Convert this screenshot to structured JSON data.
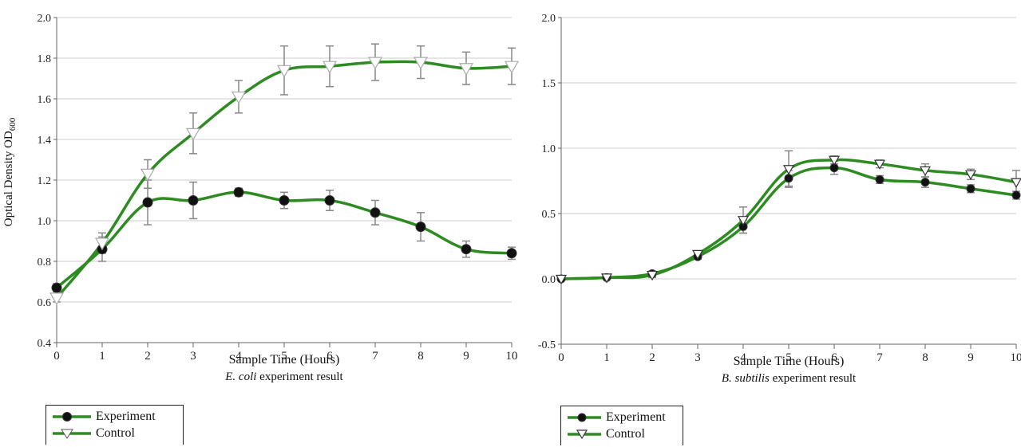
{
  "chart_data": [
    {
      "type": "line",
      "xlabel": "Sample Time (Hours)",
      "ylabel_main": "Optical Density OD",
      "ylabel_sub": "600",
      "caption_italic": "E. coli",
      "caption_rest": " experiment result",
      "xlim": [
        0,
        10
      ],
      "ylim": [
        0.4,
        2.0
      ],
      "x_ticks": [
        "0",
        "1",
        "2",
        "3",
        "4",
        "5",
        "6",
        "7",
        "8",
        "9",
        "10"
      ],
      "y_ticks": [
        "0.4",
        "0.6",
        "0.8",
        "1.0",
        "1.2",
        "1.4",
        "1.6",
        "1.8",
        "2.0"
      ],
      "grid": true,
      "legend_position": "bottom-left",
      "x": [
        0,
        1,
        2,
        3,
        4,
        5,
        6,
        7,
        8,
        9,
        10
      ],
      "series": [
        {
          "name": "Experiment",
          "marker": "filled-circle",
          "values": [
            0.67,
            0.86,
            1.09,
            1.1,
            1.14,
            1.1,
            1.1,
            1.04,
            0.97,
            0.86,
            0.84
          ],
          "errors": [
            0.02,
            0.06,
            0.11,
            0.09,
            0.02,
            0.04,
            0.05,
            0.06,
            0.07,
            0.04,
            0.03
          ]
        },
        {
          "name": "Control",
          "marker": "open-triangle-down",
          "values": [
            0.62,
            0.89,
            1.23,
            1.43,
            1.61,
            1.74,
            1.76,
            1.78,
            1.78,
            1.75,
            1.76
          ],
          "errors": [
            0.02,
            0.05,
            0.07,
            0.1,
            0.08,
            0.12,
            0.1,
            0.09,
            0.08,
            0.08,
            0.09
          ]
        }
      ]
    },
    {
      "type": "line",
      "xlabel": "Sample Time (Hours)",
      "caption_italic": "B. subtilis",
      "caption_rest": " experiment result",
      "xlim": [
        0,
        10
      ],
      "ylim": [
        -0.5,
        2.0
      ],
      "x_ticks": [
        "0",
        "1",
        "2",
        "3",
        "4",
        "5",
        "6",
        "7",
        "8",
        "9",
        "10"
      ],
      "y_ticks": [
        "-0.5",
        "0.0",
        "0.5",
        "1.0",
        "1.5",
        "2.0"
      ],
      "grid": true,
      "legend_position": "bottom-left",
      "x": [
        0,
        1,
        2,
        3,
        4,
        5,
        6,
        7,
        8,
        9,
        10
      ],
      "series": [
        {
          "name": "Experiment",
          "marker": "filled-circle",
          "values": [
            0.0,
            0.01,
            0.04,
            0.17,
            0.4,
            0.77,
            0.85,
            0.76,
            0.74,
            0.69,
            0.64
          ],
          "errors": [
            0.01,
            0.01,
            0.02,
            0.02,
            0.05,
            0.06,
            0.05,
            0.03,
            0.04,
            0.03,
            0.03
          ]
        },
        {
          "name": "Control",
          "marker": "open-triangle-down",
          "values": [
            0.0,
            0.01,
            0.03,
            0.19,
            0.45,
            0.84,
            0.91,
            0.88,
            0.83,
            0.8,
            0.74
          ],
          "errors": [
            0.01,
            0.01,
            0.02,
            0.02,
            0.1,
            0.14,
            0.03,
            0.03,
            0.05,
            0.04,
            0.09
          ]
        }
      ]
    }
  ],
  "colors": {
    "line": "#2e8b22",
    "marker_fill": "#111111",
    "marker_stroke": "#333333",
    "open_marker_fill": "#ffffff",
    "error_bar": "#888888",
    "grid": "#cccccc",
    "axis": "#666666"
  }
}
